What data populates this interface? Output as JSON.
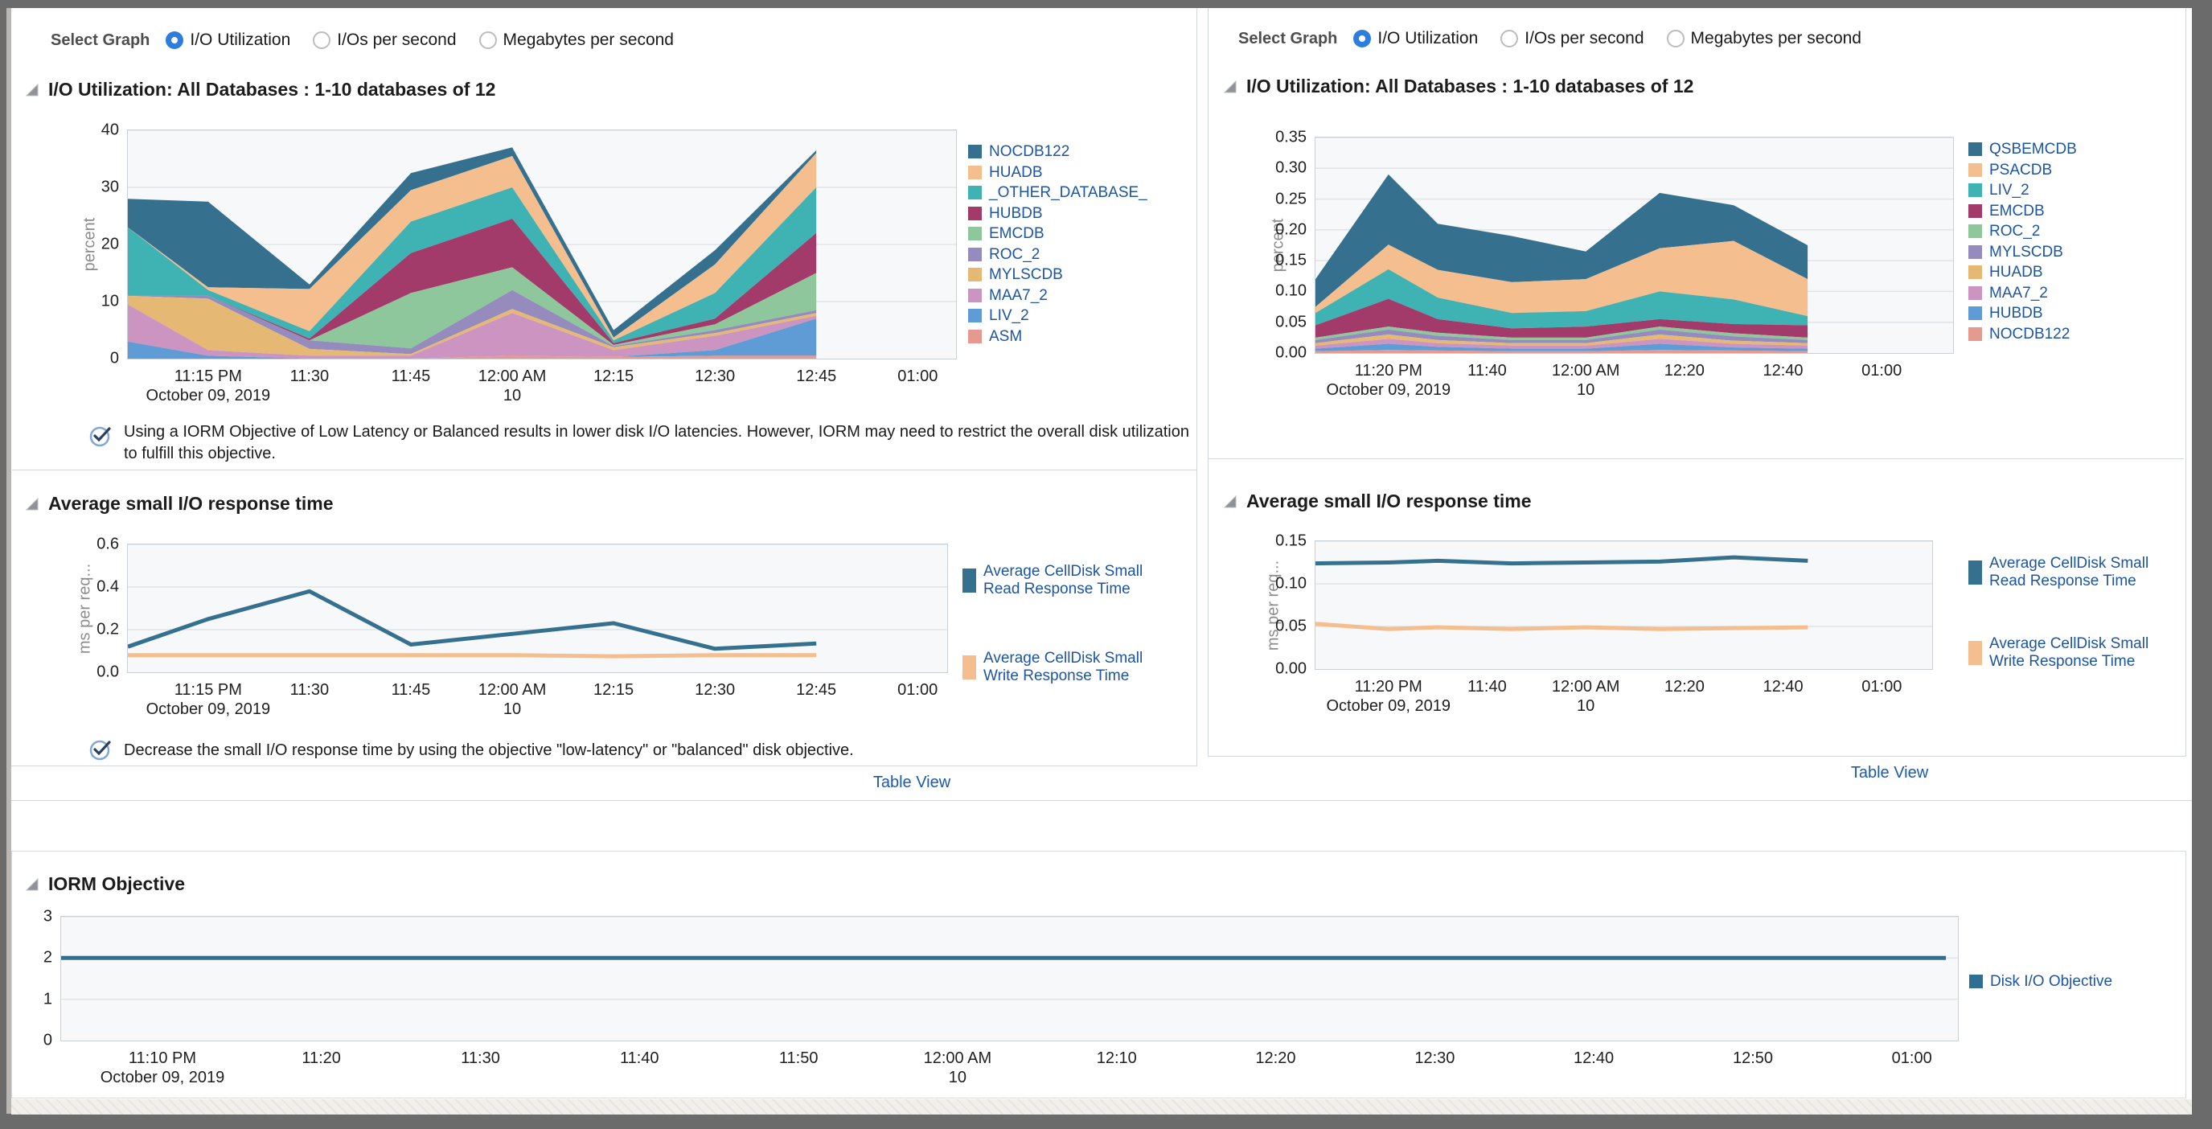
{
  "select_graph": {
    "label": "Select Graph",
    "selected": "I/O Utilization",
    "options": [
      "I/O Utilization",
      "I/Os per second",
      "Megabytes per second"
    ]
  },
  "notes": {
    "left_io": "Using a IORM Objective of Low Latency or Balanced results in lower disk I/O latencies. However, IORM may need to restrict the overall disk utilization to fulfill this objective.",
    "left_resp": "Decrease the small I/O response time by using the objective \"low-latency\" or \"balanced\" disk objective."
  },
  "links": {
    "table_view": "Table View"
  },
  "colors": {
    "steel_blue": "#35718f",
    "peach": "#f4be8f",
    "teal": "#3fb2b4",
    "magenta": "#a23a6a",
    "green": "#8fc79d",
    "purple": "#958bbd",
    "tan": "#e5b873",
    "orchid": "#cb94c1",
    "blue": "#5f9cd5",
    "salmon": "#e6998f",
    "link_blue": "#1d5aa8",
    "radio_blue": "#2d7de1"
  },
  "chart_data": [
    {
      "id": "left_io",
      "type": "area",
      "title": "I/O Utilization: All Databases : 1-10 databases of 12",
      "ylabel": "percent",
      "ylim": [
        0,
        40
      ],
      "yticks": [
        "40",
        "30",
        "20",
        "10",
        "0"
      ],
      "x_ticks": [
        "11:15 PM",
        "11:30",
        "11:45",
        "12:00 AM",
        "12:15",
        "12:30",
        "12:45",
        "01:00"
      ],
      "date_label": "October 09, 2019",
      "day_label": "10",
      "day_tick_index": 3,
      "x_points": [
        "11:05",
        "11:15",
        "11:30",
        "11:45",
        "12:00",
        "12:15",
        "12:30",
        "12:45"
      ],
      "series": [
        {
          "name": "NOCDB122",
          "color": "#35718f",
          "values": [
            5,
            15,
            0.8,
            3,
            1.5,
            1.3,
            2.5,
            0.5
          ]
        },
        {
          "name": "HUADB",
          "color": "#f4be8f",
          "values": [
            0,
            0.5,
            7.4,
            5.5,
            5.5,
            0.5,
            5,
            6
          ]
        },
        {
          "name": "_OTHER_DATABASE_",
          "color": "#3fb2b4",
          "values": [
            12,
            1,
            1.3,
            5.5,
            5.5,
            0.5,
            4.5,
            8
          ]
        },
        {
          "name": "HUBDB",
          "color": "#a23a6a",
          "values": [
            0,
            0,
            0.3,
            7,
            8.5,
            0.3,
            1,
            7
          ]
        },
        {
          "name": "EMCDB",
          "color": "#8fc79d",
          "values": [
            0,
            0,
            0,
            9.7,
            4,
            0.2,
            1,
            6.5
          ]
        },
        {
          "name": "ROC_2",
          "color": "#958bbd",
          "values": [
            0,
            0.5,
            1.5,
            1,
            3.3,
            0.2,
            0.5,
            0.5
          ]
        },
        {
          "name": "MYLSCDB",
          "color": "#e5b873",
          "values": [
            1.5,
            9,
            1.2,
            0.3,
            0.7,
            0.5,
            0.5,
            0.5
          ]
        },
        {
          "name": "MAA7_2",
          "color": "#cb94c1",
          "values": [
            6.5,
            1,
            0.5,
            0.5,
            7.5,
            1.2,
            2.5,
            0.5
          ]
        },
        {
          "name": "LIV_2",
          "color": "#5f9cd5",
          "values": [
            3,
            0.5,
            0,
            0,
            0,
            0,
            1,
            6.5
          ]
        },
        {
          "name": "ASM",
          "color": "#e6998f",
          "values": [
            0,
            0,
            0,
            0,
            0.5,
            0.3,
            0.5,
            0.5
          ]
        }
      ]
    },
    {
      "id": "right_io",
      "type": "area",
      "title": "I/O Utilization: All Databases : 1-10 databases of 12",
      "ylabel": "percent",
      "ylim": [
        0,
        0.35
      ],
      "yticks": [
        "0.35",
        "0.30",
        "0.25",
        "0.20",
        "0.15",
        "0.10",
        "0.05",
        "0.00"
      ],
      "x_ticks": [
        "11:20 PM",
        "11:40",
        "12:00 AM",
        "12:20",
        "12:40",
        "01:00"
      ],
      "date_label": "October 09, 2019",
      "day_label": "10",
      "day_tick_index": 2,
      "x_points": [
        "11:05",
        "11:20",
        "11:30",
        "11:45",
        "12:00",
        "12:15",
        "12:30",
        "12:45"
      ],
      "series": [
        {
          "name": "QSBEMCDB",
          "color": "#35718f",
          "values": [
            0.045,
            0.114,
            0.075,
            0.075,
            0.045,
            0.09,
            0.058,
            0.055
          ]
        },
        {
          "name": "PSACDB",
          "color": "#f4be8f",
          "values": [
            0.01,
            0.04,
            0.045,
            0.05,
            0.052,
            0.07,
            0.095,
            0.06
          ]
        },
        {
          "name": "LIV_2",
          "color": "#3fb2b4",
          "values": [
            0.02,
            0.048,
            0.035,
            0.025,
            0.025,
            0.045,
            0.04,
            0.015
          ]
        },
        {
          "name": "EMCDB",
          "color": "#a23a6a",
          "values": [
            0.02,
            0.045,
            0.022,
            0.015,
            0.018,
            0.012,
            0.015,
            0.02
          ]
        },
        {
          "name": "ROC_2",
          "color": "#8fc79d",
          "values": [
            0.004,
            0.005,
            0.005,
            0.004,
            0.004,
            0.005,
            0.005,
            0.004
          ]
        },
        {
          "name": "MYLSCDB",
          "color": "#958bbd",
          "values": [
            0.005,
            0.008,
            0.007,
            0.005,
            0.005,
            0.008,
            0.007,
            0.005
          ]
        },
        {
          "name": "HUADB",
          "color": "#e5b873",
          "values": [
            0.004,
            0.007,
            0.005,
            0.004,
            0.004,
            0.007,
            0.005,
            0.004
          ]
        },
        {
          "name": "MAA7_2",
          "color": "#cb94c1",
          "values": [
            0.005,
            0.008,
            0.006,
            0.005,
            0.005,
            0.008,
            0.006,
            0.005
          ]
        },
        {
          "name": "HUBDB",
          "color": "#5f9cd5",
          "values": [
            0.004,
            0.01,
            0.006,
            0.004,
            0.004,
            0.01,
            0.005,
            0.004
          ]
        },
        {
          "name": "NOCDB122",
          "color": "#e6998f",
          "values": [
            0.003,
            0.005,
            0.004,
            0.003,
            0.003,
            0.005,
            0.004,
            0.003
          ]
        }
      ]
    },
    {
      "id": "left_resp",
      "type": "line",
      "title": "Average small I/O response time",
      "ylabel": "ms per req...",
      "ylim": [
        0,
        0.6
      ],
      "yticks": [
        "0.6",
        "0.4",
        "0.2",
        "0.0"
      ],
      "x_ticks": [
        "11:15 PM",
        "11:30",
        "11:45",
        "12:00 AM",
        "12:15",
        "12:30",
        "12:45",
        "01:00"
      ],
      "date_label": "October 09, 2019",
      "day_label": "10",
      "day_tick_index": 3,
      "x_points": [
        "11:05",
        "11:15",
        "11:30",
        "11:45",
        "12:00",
        "12:15",
        "12:30",
        "12:45"
      ],
      "series": [
        {
          "name": "Average CellDisk Small Read Response Time",
          "color": "#35718f",
          "values": [
            0.12,
            0.25,
            0.38,
            0.13,
            0.18,
            0.23,
            0.11,
            0.135
          ]
        },
        {
          "name": "Average CellDisk Small Write Response Time",
          "color": "#f4be8f",
          "values": [
            0.08,
            0.08,
            0.08,
            0.08,
            0.08,
            0.075,
            0.08,
            0.08
          ]
        }
      ]
    },
    {
      "id": "right_resp",
      "type": "line",
      "title": "Average small I/O response time",
      "ylabel": "ms per req...",
      "ylim": [
        0,
        0.15
      ],
      "yticks": [
        "0.15",
        "0.10",
        "0.05",
        "0.00"
      ],
      "x_ticks": [
        "11:20 PM",
        "11:40",
        "12:00 AM",
        "12:20",
        "12:40",
        "01:00"
      ],
      "date_label": "October 09, 2019",
      "day_label": "10",
      "day_tick_index": 2,
      "x_points": [
        "11:05",
        "11:20",
        "11:30",
        "11:45",
        "12:00",
        "12:15",
        "12:30",
        "12:45"
      ],
      "series": [
        {
          "name": "Average CellDisk Small Read Response Time",
          "color": "#35718f",
          "values": [
            0.124,
            0.125,
            0.127,
            0.124,
            0.125,
            0.126,
            0.131,
            0.127
          ]
        },
        {
          "name": "Average CellDisk Small Write Response Time",
          "color": "#f4be8f",
          "values": [
            0.053,
            0.047,
            0.049,
            0.047,
            0.049,
            0.047,
            0.048,
            0.049
          ]
        }
      ]
    },
    {
      "id": "iorm",
      "type": "line",
      "title": "IORM Objective",
      "ylabel": "",
      "ylim": [
        0,
        3
      ],
      "yticks": [
        "3",
        "2",
        "1",
        "0"
      ],
      "x_ticks": [
        "11:10 PM",
        "11:20",
        "11:30",
        "11:40",
        "11:50",
        "12:00 AM",
        "12:10",
        "12:20",
        "12:30",
        "12:40",
        "12:50",
        "01:00"
      ],
      "date_label": "October 09, 2019",
      "day_label": "10",
      "day_tick_index": 5,
      "x_points": [
        "start",
        "end"
      ],
      "series": [
        {
          "name": "Disk I/O Objective",
          "color": "#2f6f92",
          "values": [
            2,
            2
          ]
        }
      ]
    }
  ]
}
